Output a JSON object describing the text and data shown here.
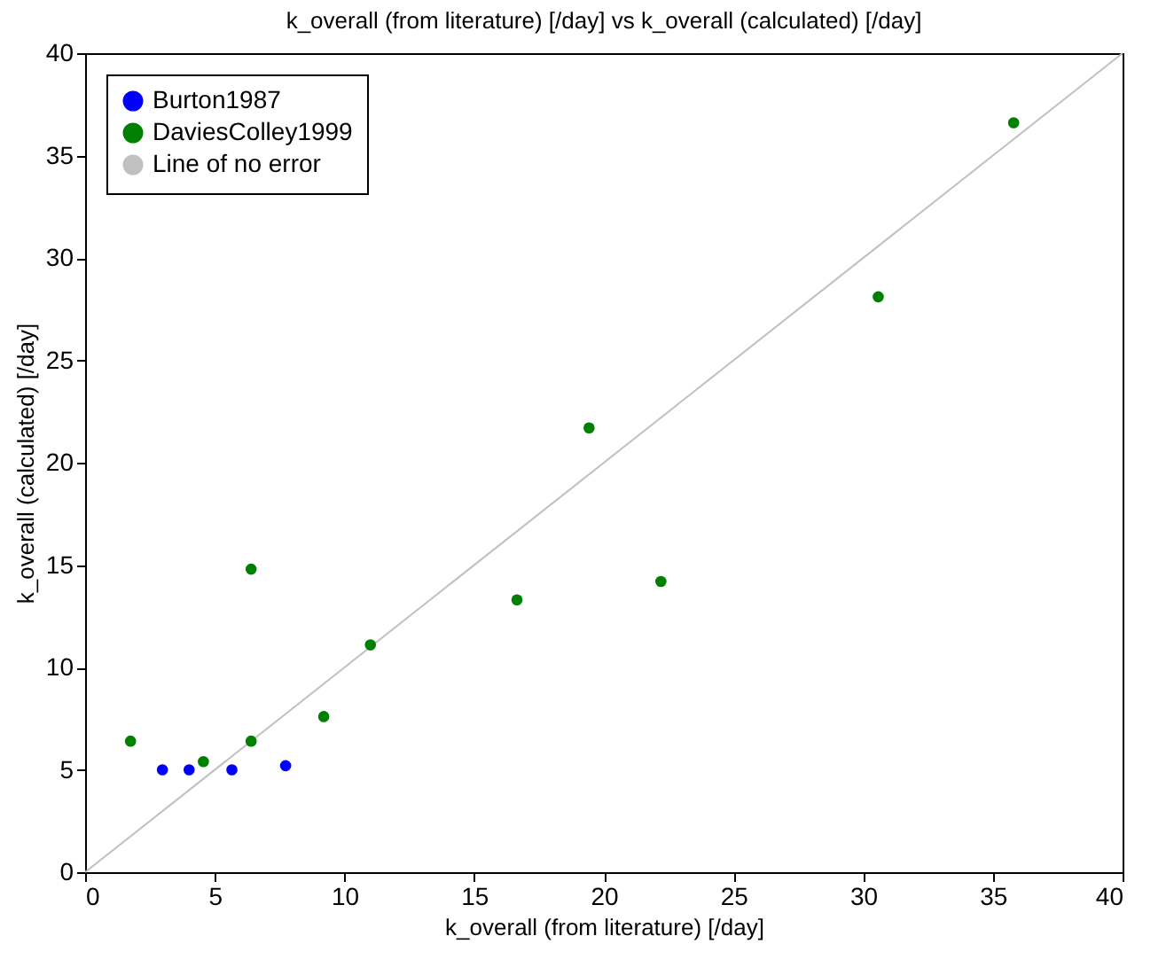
{
  "chart_data": {
    "type": "scatter",
    "title": "k_overall (from literature) [/day] vs k_overall (calculated) [/day]",
    "xlabel": "k_overall (from literature) [/day]",
    "ylabel": "k_overall (calculated) [/day]",
    "xlim": [
      0,
      40
    ],
    "ylim": [
      0,
      40
    ],
    "xticks": [
      0,
      5,
      10,
      15,
      20,
      25,
      30,
      35,
      40
    ],
    "yticks": [
      0,
      5,
      10,
      15,
      20,
      25,
      30,
      35,
      40
    ],
    "grid": false,
    "legend": "top left",
    "marker": "circle",
    "series": [
      {
        "name": "Burton1987",
        "color": "#0000ff",
        "x": [
          2.98,
          4.01,
          5.66,
          7.73
        ],
        "values": [
          5.0,
          5.0,
          5.0,
          5.2
        ]
      },
      {
        "name": "DaviesColley1999",
        "color": "#008000",
        "x": [
          1.75,
          4.56,
          6.4,
          6.4,
          9.2,
          11.0,
          16.65,
          19.43,
          22.2,
          30.58,
          35.8
        ],
        "values": [
          6.4,
          5.4,
          6.4,
          14.8,
          7.6,
          11.1,
          13.3,
          21.7,
          14.2,
          28.1,
          36.6
        ]
      },
      {
        "name": "Line of no error",
        "type": "line",
        "color": "#c0c0c0",
        "line_style": "solid",
        "marker": "none",
        "x": [
          0,
          40
        ],
        "values": [
          0,
          40
        ]
      }
    ]
  }
}
